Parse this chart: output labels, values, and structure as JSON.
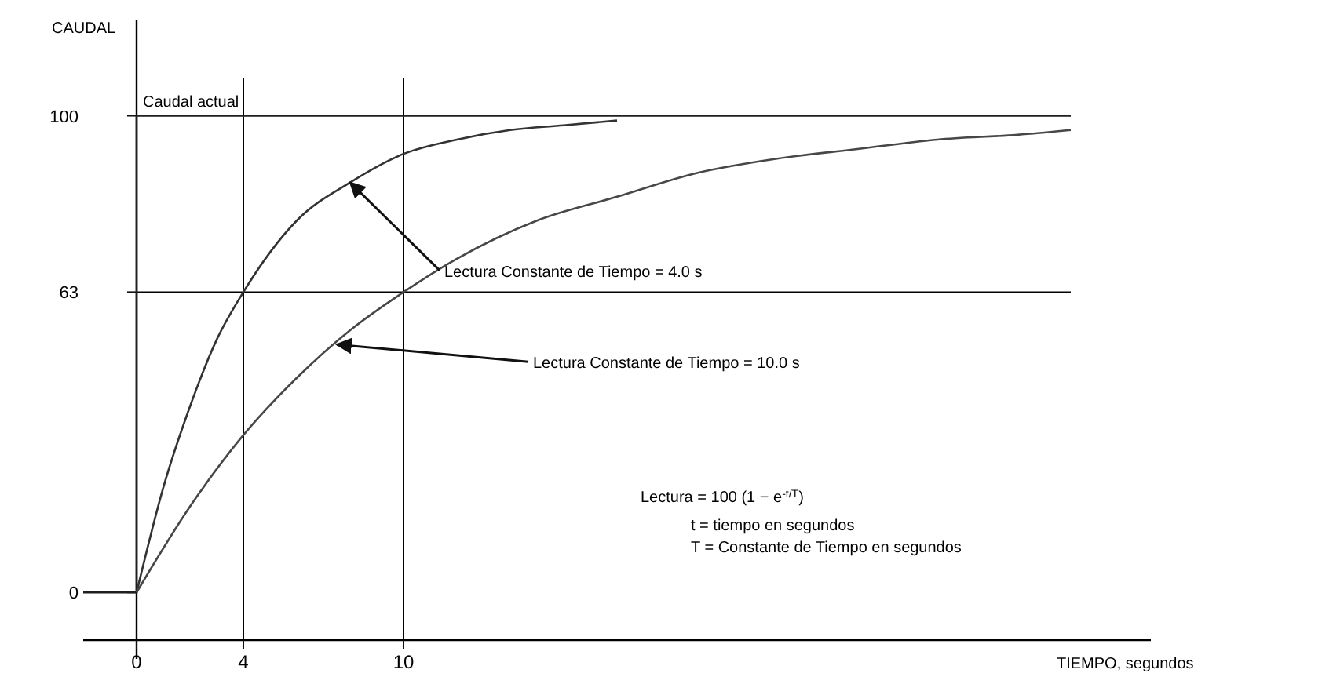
{
  "chart_data": {
    "type": "line",
    "xlabel": "TIEMPO, segundos",
    "ylabel": "CAUDAL",
    "xlim": [
      -2,
      38
    ],
    "ylim": [
      -10,
      120
    ],
    "xticks": [
      0,
      4,
      10
    ],
    "yticks": [
      0,
      63,
      100
    ],
    "grid": false,
    "series": [
      {
        "color": "#1f1f1f",
        "x": [
          -2,
          0,
          0,
          35
        ],
        "values": [
          0,
          0,
          100,
          100
        ]
      },
      {
        "color": "#333333",
        "x": [
          0,
          1,
          2,
          3,
          4,
          6,
          8,
          10,
          12,
          14,
          16,
          18
        ],
        "values": [
          0,
          22,
          39,
          53,
          63,
          78,
          86,
          92,
          95,
          97,
          98,
          99
        ]
      },
      {
        "color": "#474747",
        "x": [
          0,
          2,
          4,
          6,
          8,
          10,
          12,
          15,
          18,
          21,
          24,
          27,
          30,
          33,
          35
        ],
        "values": [
          0,
          18,
          33,
          45,
          55,
          63,
          70,
          78,
          83,
          88,
          91,
          93,
          95,
          96,
          97
        ]
      }
    ],
    "ref_lines": [
      {
        "axis": "y",
        "value": 63
      },
      {
        "axis": "x",
        "value": 4
      },
      {
        "axis": "x",
        "value": 10
      }
    ],
    "annotations": [
      {
        "text": "Caudal actual",
        "x": 0,
        "y": 100
      },
      {
        "text": "Lectura Constante de Tiempo = 4.0 s",
        "x": 8,
        "y": 86
      },
      {
        "text": "Lectura Constante de Tiempo = 10.0 s",
        "x": 7.5,
        "y": 52
      },
      "Lectura = 100 (1 − e$^{-t/T}$)",
      "t = tiempo en segundos",
      "T = Constante de Tiempo en segundos"
    ]
  }
}
